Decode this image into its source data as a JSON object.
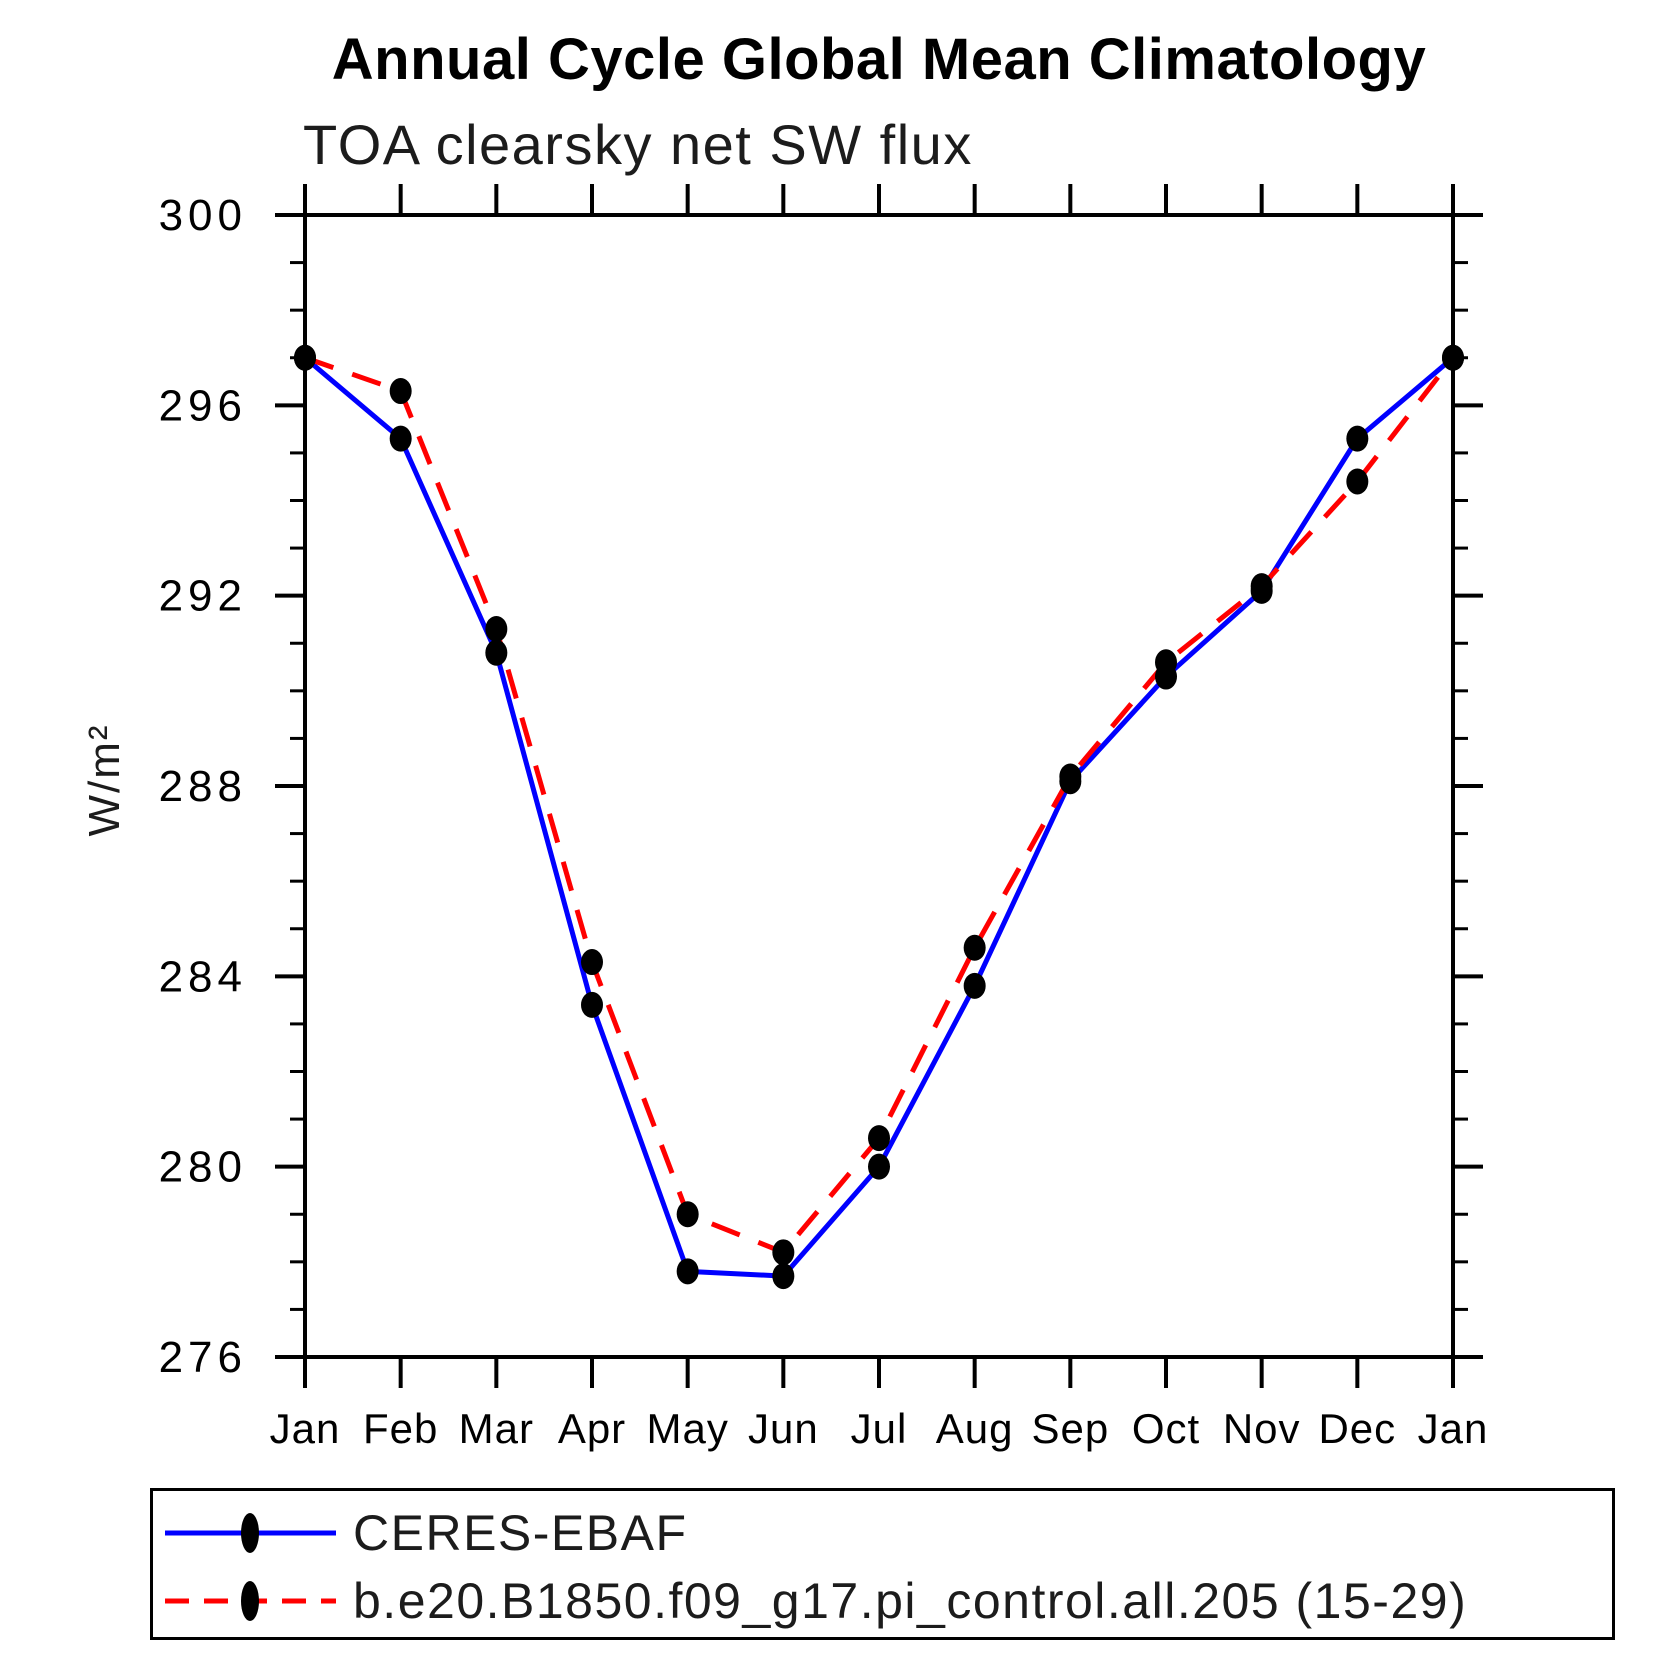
{
  "page": {
    "background": "#ffffff"
  },
  "chart_data": {
    "type": "line",
    "title": "Annual Cycle Global Mean Climatology",
    "subtitle": "TOA clearsky net SW flux",
    "ylabel": "W/m²",
    "ylim": [
      276,
      300
    ],
    "ytick_major_step": 4,
    "ytick_minor_step": 1,
    "ytick_labels": [
      "276",
      "280",
      "284",
      "288",
      "292",
      "296",
      "300"
    ],
    "categories": [
      "Jan",
      "Feb",
      "Mar",
      "Apr",
      "May",
      "Jun",
      "Jul",
      "Aug",
      "Sep",
      "Oct",
      "Nov",
      "Dec",
      "Jan"
    ],
    "grid": false,
    "legend_position": "bottom-left-box",
    "axis_color": "#000000",
    "marker_color": "#000000",
    "series": [
      {
        "name": "CERES-EBAF",
        "color": "#0000ff",
        "line_style": "solid",
        "marker": "filled-circle",
        "values": [
          297.0,
          295.3,
          290.8,
          283.4,
          277.8,
          277.7,
          280.0,
          283.8,
          288.1,
          290.3,
          292.1,
          295.3,
          297.0
        ]
      },
      {
        "name": "b.e20.B1850.f09_g17.pi_control.all.205 (15-29)",
        "color": "#ff0000",
        "line_style": "dashed",
        "marker": "filled-circle",
        "values": [
          297.0,
          296.3,
          291.3,
          284.3,
          279.0,
          278.2,
          280.6,
          284.6,
          288.2,
          290.6,
          292.2,
          294.4,
          297.0
        ]
      }
    ]
  }
}
